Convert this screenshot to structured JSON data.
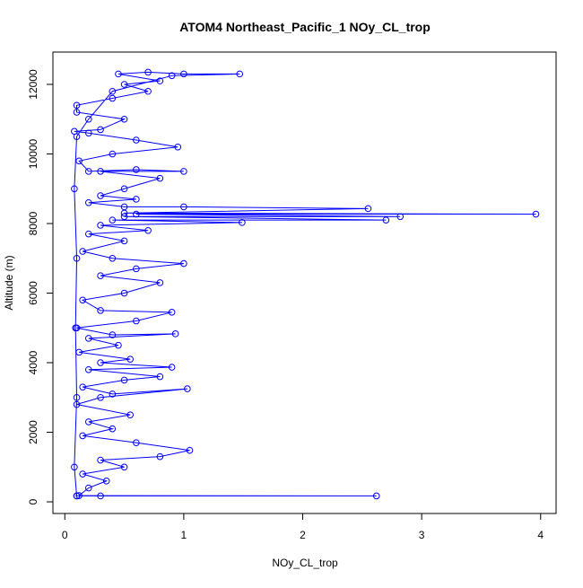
{
  "chart_data": {
    "type": "line",
    "title": "ATOM4 Northeast_Pacific_1 NOy_CL_trop",
    "xlabel": "NOy_CL_trop",
    "ylabel": "Altitude (m)",
    "color": "#0000ff",
    "x": [
      0.1,
      0.3,
      2.62,
      0.12,
      0.2,
      0.35,
      0.15,
      0.5,
      0.3,
      0.8,
      1.05,
      0.6,
      0.15,
      0.4,
      0.2,
      0.55,
      0.1,
      0.3,
      1.03,
      0.4,
      0.15,
      0.5,
      0.8,
      0.2,
      0.9,
      0.3,
      0.55,
      0.12,
      0.45,
      0.2,
      0.93,
      0.4,
      0.1,
      0.6,
      0.9,
      0.3,
      0.15,
      0.5,
      0.8,
      0.3,
      0.6,
      1.0,
      0.4,
      0.15,
      0.5,
      0.2,
      0.7,
      0.3,
      1.49,
      0.4,
      2.7,
      0.5,
      2.82,
      0.6,
      3.96,
      0.5,
      2.55,
      1.0,
      0.5,
      0.2,
      0.6,
      0.3,
      0.5,
      0.8,
      0.3,
      1.0,
      0.6,
      0.2,
      0.12,
      0.4,
      0.95,
      0.6,
      0.2,
      0.08,
      0.3,
      0.5,
      0.1,
      0.1,
      0.4,
      0.7,
      0.5,
      0.8,
      0.45,
      0.7,
      1.0,
      1.47,
      0.9,
      0.4,
      0.2,
      0.1,
      0.08,
      0.1,
      0.09,
      0.1,
      0.08,
      0.1
    ],
    "y": [
      170,
      170,
      170,
      180,
      400,
      600,
      800,
      1000,
      1200,
      1300,
      1480,
      1700,
      1900,
      2100,
      2300,
      2500,
      2800,
      3000,
      3250,
      3100,
      3300,
      3500,
      3600,
      3800,
      3870,
      4000,
      4100,
      4300,
      4500,
      4700,
      4830,
      4800,
      5000,
      5200,
      5450,
      5500,
      5800,
      6000,
      6300,
      6500,
      6700,
      6850,
      7000,
      7200,
      7500,
      7700,
      7800,
      7950,
      8030,
      8100,
      8100,
      8200,
      8200,
      8270,
      8270,
      8300,
      8430,
      8480,
      8480,
      8600,
      8700,
      8800,
      9000,
      9300,
      9500,
      9500,
      9550,
      9500,
      9800,
      10000,
      10200,
      10400,
      10600,
      10650,
      10700,
      11000,
      11200,
      11400,
      11600,
      11800,
      12000,
      12100,
      12300,
      12350,
      12300,
      12300,
      12250,
      11800,
      11000,
      10500,
      9000,
      7000,
      5000,
      3000,
      1000,
      170
    ],
    "xlim": [
      -0.1,
      4.13
    ],
    "ylim": [
      -335,
      12929
    ],
    "xticks": [
      0,
      1,
      2,
      3,
      4
    ],
    "yticks": [
      0,
      2000,
      4000,
      6000,
      8000,
      10000,
      12000
    ]
  }
}
